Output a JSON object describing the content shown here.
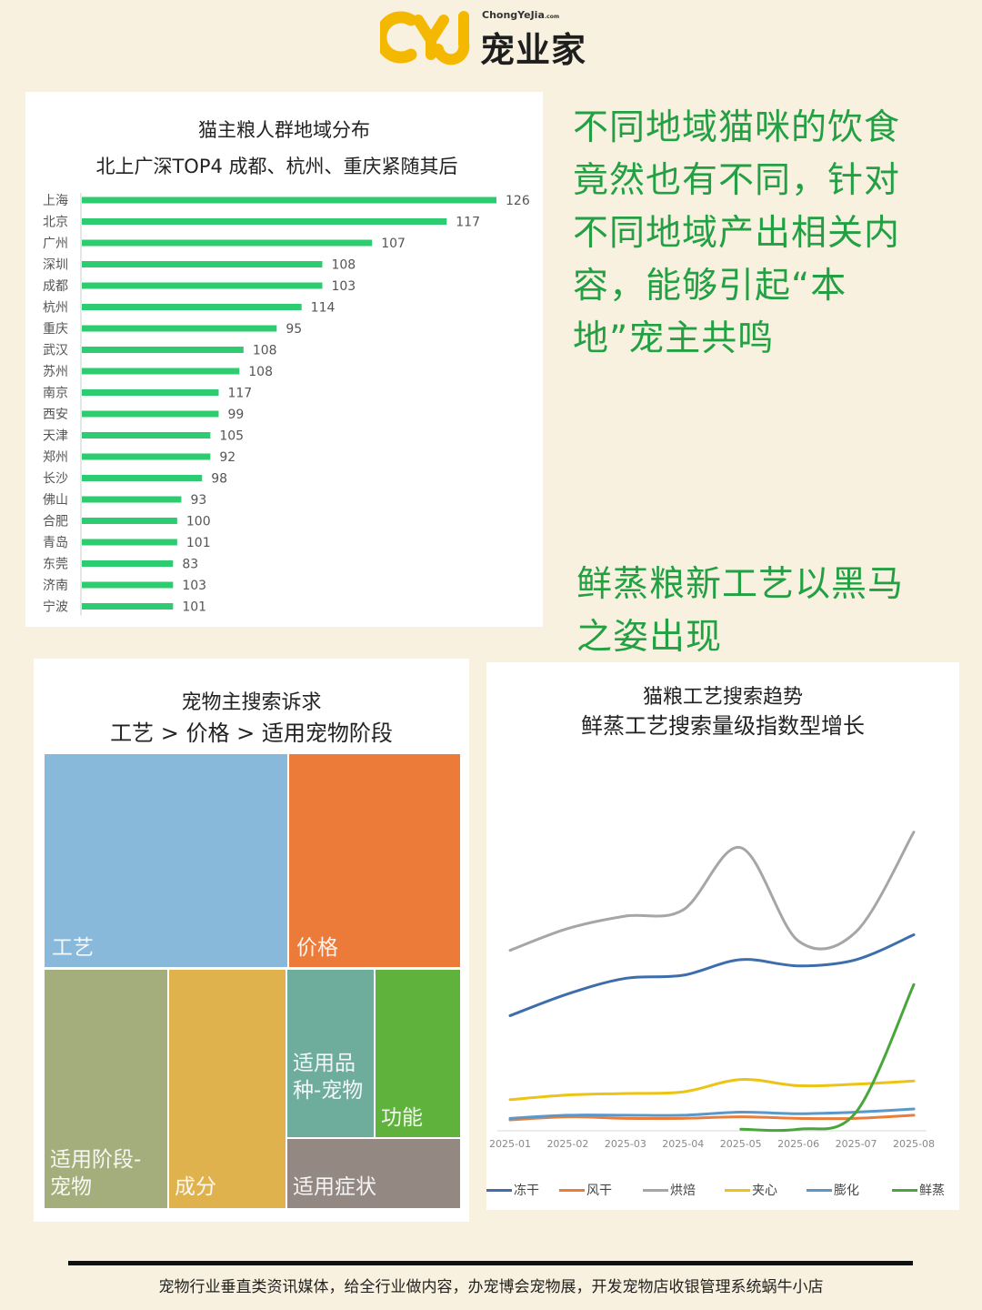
{
  "brand": {
    "sub": "ChongYeJia",
    "sub_tld": ".com",
    "name": "宠业家",
    "colors": {
      "mark": "#f5b800",
      "text": "#1e1e1e"
    }
  },
  "callouts": {
    "region_note": "不同地域猫咪的饮食竟然也有不同，针对不同地域产出相关内容，能够引起“本地”宠主共鸣",
    "steam_note": "鲜蒸粮新工艺以黑马之姿出现"
  },
  "footer": {
    "text": "宠物行业垂直类资讯媒体，给全行业做内容，办宠博会宠物展，开发宠物店收银管理系统蜗牛小店"
  },
  "chart_data": [
    {
      "type": "bar",
      "orientation": "horizontal",
      "title": "猫主粮人群地域分布",
      "subtitle": "北上广深TOP4  成都、杭州、重庆紧随其后",
      "categories": [
        "上海",
        "北京",
        "广州",
        "深圳",
        "成都",
        "杭州",
        "重庆",
        "武汉",
        "苏州",
        "南京",
        "西安",
        "天津",
        "郑州",
        "长沙",
        "佛山",
        "合肥",
        "青岛",
        "东莞",
        "济南",
        "宁波"
      ],
      "data_labels": [
        126,
        117,
        107,
        108,
        103,
        114,
        95,
        108,
        108,
        117,
        99,
        105,
        92,
        98,
        93,
        100,
        101,
        83,
        103,
        101
      ],
      "bar_share": [
        1.0,
        0.88,
        0.7,
        0.58,
        0.58,
        0.53,
        0.47,
        0.39,
        0.38,
        0.33,
        0.33,
        0.31,
        0.31,
        0.29,
        0.24,
        0.23,
        0.23,
        0.22,
        0.22,
        0.22
      ],
      "color": "#2ecc71",
      "grid": false
    },
    {
      "type": "treemap",
      "title": "宠物主搜索诉求",
      "subtitle": "工艺 > 价格 > 适用宠物阶段",
      "items": [
        {
          "label": "工艺",
          "color": "#89b9da"
        },
        {
          "label": "价格",
          "color": "#ec7a38"
        },
        {
          "label": "适用阶段-宠物",
          "color": "#a4ae7c"
        },
        {
          "label": "成分",
          "color": "#e0b24e"
        },
        {
          "label": "适用品种-宠物",
          "color": "#6ead9c"
        },
        {
          "label": "功能",
          "color": "#5fb23c"
        },
        {
          "label": "适用症状",
          "color": "#948883"
        }
      ]
    },
    {
      "type": "line",
      "title": "猫粮工艺搜索趋势",
      "subtitle": "鲜蒸工艺搜索量级指数型增长",
      "x": [
        "2025-01",
        "2025-02",
        "2025-03",
        "2025-04",
        "2025-05",
        "2025-06",
        "2025-07",
        "2025-08"
      ],
      "ylim": [
        0,
        100
      ],
      "y_axis_labels": false,
      "grid": false,
      "legend_position": "bottom",
      "series": [
        {
          "name": "冻干",
          "color": "#3d6eab",
          "values": [
            37,
            44,
            49,
            50,
            55,
            53,
            55,
            63
          ]
        },
        {
          "name": "风干",
          "color": "#ea7d3c",
          "values": [
            3.5,
            4.5,
            4,
            4,
            4.5,
            4,
            4,
            5
          ]
        },
        {
          "name": "烘焙",
          "color": "#a6a6a6",
          "values": [
            58,
            65,
            69,
            71,
            91,
            61,
            64,
            96
          ]
        },
        {
          "name": "夹心",
          "color": "#ecc415",
          "values": [
            10,
            11.5,
            12,
            12.5,
            16.5,
            14.5,
            15,
            16
          ]
        },
        {
          "name": "膨化",
          "color": "#5c97c9",
          "values": [
            4,
            5,
            5,
            5,
            6,
            5.5,
            6,
            7
          ]
        },
        {
          "name": "鲜蒸",
          "color": "#4aa63c",
          "values": [
            null,
            null,
            null,
            null,
            0.5,
            0.5,
            6,
            47
          ]
        }
      ]
    }
  ]
}
